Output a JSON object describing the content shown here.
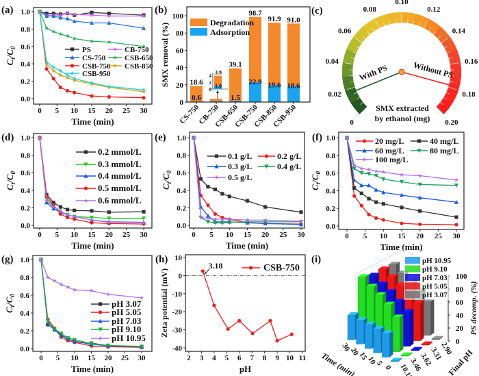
{
  "chart_data": [
    {
      "panel": "(a)",
      "type": "line",
      "x": [
        0,
        2,
        4,
        6,
        8,
        10,
        15,
        20,
        30
      ],
      "xticks": [
        0,
        5,
        10,
        15,
        20,
        25,
        30
      ],
      "yticks": [
        "0.0",
        "0.2",
        "0.4",
        "0.6",
        "0.8",
        "1.0"
      ],
      "xlabel": "Time (min)",
      "ylabel": [
        "C",
        "t",
        "/C",
        "0"
      ],
      "ylim": [
        0,
        1
      ],
      "xlim": [
        0,
        30
      ],
      "series": [
        {
          "name": "PS",
          "color": "#333333",
          "marker": "square",
          "values": [
            1,
            0.98,
            0.98,
            0.97,
            0.98,
            0.96,
            0.99,
            0.98,
            0.96
          ]
        },
        {
          "name": "CB-750",
          "color": "#cc66ff",
          "marker": "star",
          "values": [
            1,
            0.96,
            0.96,
            0.96,
            0.98,
            0.97,
            0.96,
            0.95,
            0.95
          ]
        },
        {
          "name": "CS-750",
          "color": "#2a6fdb",
          "marker": "triangle",
          "values": [
            1,
            0.95,
            0.95,
            0.93,
            0.92,
            0.89,
            0.87,
            0.87,
            0.81
          ]
        },
        {
          "name": "CSB-650",
          "color": "#2eaa5c",
          "marker": "star",
          "values": [
            1,
            0.81,
            0.77,
            0.74,
            0.72,
            0.69,
            0.66,
            0.65,
            0.6
          ]
        },
        {
          "name": "CSB-750",
          "color": "#ee1c1c",
          "marker": "circle",
          "values": [
            1,
            0.34,
            0.23,
            0.13,
            0.09,
            0.07,
            0.03,
            0.02,
            0.01
          ]
        },
        {
          "name": "CSB-850",
          "color": "#d4a017",
          "marker": "star",
          "values": [
            1,
            0.4,
            0.32,
            0.27,
            0.24,
            0.21,
            0.17,
            0.13,
            0.08
          ]
        },
        {
          "name": "CSB-950",
          "color": "#22d3d3",
          "marker": "star",
          "values": [
            1,
            0.42,
            0.36,
            0.32,
            0.27,
            0.23,
            0.18,
            0.14,
            0.1
          ]
        }
      ]
    },
    {
      "panel": "(b)",
      "type": "bar",
      "categories": [
        "CS-750",
        "CB-750",
        "CSB-650",
        "CSB-750",
        "CSB-850",
        "CSB-950"
      ],
      "series": [
        {
          "name": "Degradation",
          "color": "#f4892b",
          "values": [
            18.6,
            3.9,
            39.1,
            98.7,
            91.9,
            91.0
          ],
          "labels": [
            "18.6",
            "3.9",
            "39.1",
            "98.7",
            "91.9",
            "91.0"
          ]
        },
        {
          "name": "Adsorption",
          "color": "#1aa3ee",
          "values": [
            0.6,
            1.0,
            1.5,
            22.9,
            19.6,
            18.6
          ],
          "labels": [
            "0.6",
            "1.0",
            "1.5",
            "22.9",
            "19.6",
            "18.6"
          ]
        }
      ],
      "yticks": [
        "0",
        "20",
        "40",
        "60",
        "80",
        "100"
      ],
      "ylim": [
        0,
        110
      ],
      "ylabel": "SMX removal (%)",
      "xlabel": "",
      "inset": {
        "yticks": [
          "0",
          "2",
          "4"
        ],
        "category": "CB-750"
      }
    },
    {
      "panel": "(c)",
      "type": "gauge",
      "range": [
        0,
        0.2
      ],
      "ticks": [
        "0",
        "0.02",
        "0.04",
        "0.06",
        "0.08",
        "0.10",
        "0.12",
        "0.14",
        "0.16",
        "0.18",
        "0.20"
      ],
      "needles": [
        {
          "name": "With PS",
          "value": 0.017,
          "color": "#1d5a24"
        },
        {
          "name": "Without PS",
          "value": 0.178,
          "color": "#f02020"
        }
      ],
      "caption": [
        "SMX extracted",
        "by ethanol (mg)"
      ]
    },
    {
      "panel": "(d)",
      "type": "line",
      "x": [
        0,
        2,
        4,
        6,
        8,
        10,
        15,
        20,
        30
      ],
      "xticks": [
        0,
        5,
        10,
        15,
        20,
        25,
        30
      ],
      "yticks": [
        "0.0",
        "0.2",
        "0.4",
        "0.6",
        "0.8",
        "1.0"
      ],
      "xlabel": "Time (min)",
      "ylabel": [
        "C",
        "t",
        "/C",
        "0"
      ],
      "ylim": [
        0,
        1
      ],
      "xlim": [
        0,
        30
      ],
      "series": [
        {
          "name": "0.2 mmol/L",
          "color": "#333333",
          "marker": "square",
          "values": [
            1,
            0.35,
            0.26,
            0.21,
            0.18,
            0.17,
            0.165,
            0.15,
            0.155
          ]
        },
        {
          "name": "0.3 mmol/L",
          "color": "#22cc22",
          "marker": "triangle-down",
          "values": [
            1,
            0.3,
            0.22,
            0.16,
            0.12,
            0.1,
            0.09,
            0.08,
            0.08
          ]
        },
        {
          "name": "0.4 mmol/L",
          "color": "#1a5ae0",
          "marker": "triangle",
          "values": [
            1,
            0.26,
            0.19,
            0.15,
            0.12,
            0.1,
            0.06,
            0.04,
            0.035
          ]
        },
        {
          "name": "0.5 mmol/L",
          "color": "#ee1c1c",
          "marker": "circle",
          "values": [
            1,
            0.33,
            0.23,
            0.13,
            0.09,
            0.07,
            0.03,
            0.02,
            0.015
          ]
        },
        {
          "name": "0.6 mmol/L",
          "color": "#b070f0",
          "marker": "star",
          "values": [
            1,
            0.28,
            0.21,
            0.16,
            0.12,
            0.1,
            0.06,
            0.035,
            0.03
          ]
        }
      ]
    },
    {
      "panel": "(e)",
      "type": "line",
      "x": [
        0,
        2,
        4,
        6,
        8,
        10,
        15,
        20,
        30
      ],
      "xticks": [
        0,
        5,
        10,
        15,
        20,
        25,
        30
      ],
      "yticks": [
        "0.0",
        "0.2",
        "0.4",
        "0.6",
        "0.8",
        "1.0"
      ],
      "xlabel": "Time (min)",
      "ylabel": [
        "C",
        "t",
        "/C",
        "0"
      ],
      "ylim": [
        0,
        1
      ],
      "xlim": [
        0,
        30
      ],
      "series": [
        {
          "name": "0.1 g/L",
          "color": "#333333",
          "marker": "square",
          "values": [
            1,
            0.53,
            0.44,
            0.41,
            0.36,
            0.33,
            0.28,
            0.21,
            0.15
          ]
        },
        {
          "name": "0.2 g/L",
          "color": "#ee1c1c",
          "marker": "circle",
          "values": [
            1,
            0.34,
            0.23,
            0.13,
            0.09,
            0.07,
            0.03,
            0.02,
            0.015
          ]
        },
        {
          "name": "0.3 g/L",
          "color": "#1a5ae0",
          "marker": "triangle",
          "values": [
            1,
            0.21,
            0.11,
            0.04,
            0.04,
            0.04,
            0.03,
            0.02,
            0.01
          ]
        },
        {
          "name": "0.4 g/L",
          "color": "#20a050",
          "marker": "triangle-down",
          "values": [
            1,
            0.09,
            0.04,
            0.03,
            0.025,
            0.035,
            0.04,
            0.04,
            0.04
          ]
        },
        {
          "name": "0.5 g/L",
          "color": "#b070f0",
          "marker": "star",
          "values": [
            1,
            0.09,
            0.08,
            0.07,
            0.07,
            0.07,
            0.06,
            0.06,
            0.045
          ]
        }
      ]
    },
    {
      "panel": "(f)",
      "type": "line",
      "x": [
        0,
        2,
        4,
        6,
        8,
        10,
        15,
        20,
        30
      ],
      "xticks": [
        0,
        5,
        10,
        15,
        20,
        25,
        30
      ],
      "yticks": [
        "0.0",
        "0.2",
        "0.4",
        "0.6",
        "0.8",
        "1.0"
      ],
      "xlabel": "Time (min)",
      "ylabel": [
        "C",
        "t",
        "/C",
        "0"
      ],
      "ylim": [
        0,
        1
      ],
      "xlim": [
        0,
        30
      ],
      "series": [
        {
          "name": "20 mg/L",
          "color": "#ee1c1c",
          "marker": "circle",
          "values": [
            1,
            0.34,
            0.23,
            0.13,
            0.09,
            0.07,
            0.03,
            0.02,
            0.015
          ]
        },
        {
          "name": "40 mg/L",
          "color": "#333333",
          "marker": "square",
          "values": [
            1,
            0.43,
            0.37,
            0.31,
            0.27,
            0.25,
            0.21,
            0.17,
            0.1
          ]
        },
        {
          "name": "60 mg/L",
          "color": "#1a5ae0",
          "marker": "triangle",
          "values": [
            1,
            0.52,
            0.46,
            0.46,
            0.41,
            0.38,
            0.35,
            0.32,
            0.27
          ]
        },
        {
          "name": "80 mg/L",
          "color": "#20a060",
          "marker": "triangle-down",
          "values": [
            1,
            0.65,
            0.6,
            0.59,
            0.57,
            0.53,
            0.5,
            0.47,
            0.46
          ]
        },
        {
          "name": "100 mg/L",
          "color": "#b070f0",
          "marker": "star",
          "values": [
            1,
            0.69,
            0.65,
            0.64,
            0.62,
            0.61,
            0.58,
            0.57,
            0.52
          ]
        }
      ]
    },
    {
      "panel": "(g)",
      "type": "line",
      "x": [
        0,
        2,
        4,
        6,
        8,
        10,
        15,
        20,
        30
      ],
      "xticks": [
        0,
        5,
        10,
        15,
        20,
        25,
        30
      ],
      "yticks": [
        "0.0",
        "0.2",
        "0.4",
        "0.6",
        "0.8",
        "1.0"
      ],
      "xlabel": "Time (min)",
      "ylabel": [
        "C",
        "t",
        "/C",
        "0"
      ],
      "ylim": [
        0,
        1
      ],
      "xlim": [
        0,
        30
      ],
      "series": [
        {
          "name": "pH 3.07",
          "color": "#333333",
          "marker": "square",
          "values": [
            1,
            0.27,
            0.22,
            0.15,
            0.11,
            0.08,
            0.06,
            0.035,
            0.015
          ]
        },
        {
          "name": "pH 5.05",
          "color": "#ee1c1c",
          "marker": "circle",
          "values": [
            1,
            0.33,
            0.23,
            0.13,
            0.09,
            0.07,
            0.03,
            0.02,
            0.015
          ]
        },
        {
          "name": "pH 7.03",
          "color": "#1a5ae0",
          "marker": "triangle",
          "values": [
            1,
            0.28,
            0.21,
            0.15,
            0.11,
            0.08,
            0.05,
            0.03,
            0.02
          ]
        },
        {
          "name": "pH 9.10",
          "color": "#20b040",
          "marker": "triangle-down",
          "values": [
            1,
            0.31,
            0.22,
            0.17,
            0.12,
            0.1,
            0.055,
            0.035,
            0.025
          ]
        },
        {
          "name": "pH 10.95",
          "color": "#b070f0",
          "marker": "star",
          "values": [
            1,
            0.8,
            0.76,
            0.72,
            0.69,
            0.66,
            0.65,
            0.61,
            0.57
          ]
        }
      ]
    },
    {
      "panel": "(h)",
      "type": "line",
      "x": [
        3.1,
        4,
        5.1,
        6,
        7.05,
        8.45,
        9,
        10.15
      ],
      "xticks": [
        2,
        3,
        4,
        5,
        6,
        7,
        8,
        9,
        10,
        11
      ],
      "yticks": [
        "10",
        "0",
        "-10",
        "-20",
        "-30",
        "-40"
      ],
      "xlabel": "pH",
      "ylabel": "Zeta potential (mV)",
      "ylim": [
        -40,
        10
      ],
      "xlim": [
        2,
        11
      ],
      "series": [
        {
          "name": "CSB-750",
          "color": "#ee1c1c",
          "marker": "circle",
          "values": [
            2.5,
            -16.5,
            -29.5,
            -25,
            -32,
            -25,
            -36,
            -32.5
          ]
        }
      ],
      "annotation": "3.18"
    },
    {
      "panel": "(i)",
      "type": "bar3d",
      "time": [
        30,
        20,
        15,
        10,
        5,
        0
      ],
      "series": [
        {
          "name": "pH 10.95",
          "final_pH": "10.15",
          "color": "#1e9be8",
          "values": [
            38,
            37,
            37,
            37,
            37,
            0
          ]
        },
        {
          "name": "pH 9.10",
          "final_pH": "3.46",
          "color": "#22dd22",
          "values": [
            88,
            80,
            74,
            66,
            53,
            0
          ]
        },
        {
          "name": "pH 7.03",
          "final_pH": "3.62",
          "color": "#1010dd",
          "values": [
            82,
            75,
            70,
            62,
            53,
            0
          ]
        },
        {
          "name": "pH 5.05",
          "final_pH": "3.31",
          "color": "#ee1515",
          "values": [
            83,
            78,
            72,
            66,
            58,
            0
          ]
        },
        {
          "name": "pH 3.07",
          "final_pH": "2.90",
          "color": "#777777",
          "values": [
            82,
            75,
            68,
            62,
            52,
            0
          ]
        }
      ],
      "zticks": [
        "0",
        "20",
        "40",
        "60",
        "80",
        "100"
      ],
      "zlim": [
        0,
        100
      ],
      "zlabel": "PS decomp. (%)",
      "xlabel": "Time (min)",
      "ylabel": "Final pH"
    }
  ]
}
